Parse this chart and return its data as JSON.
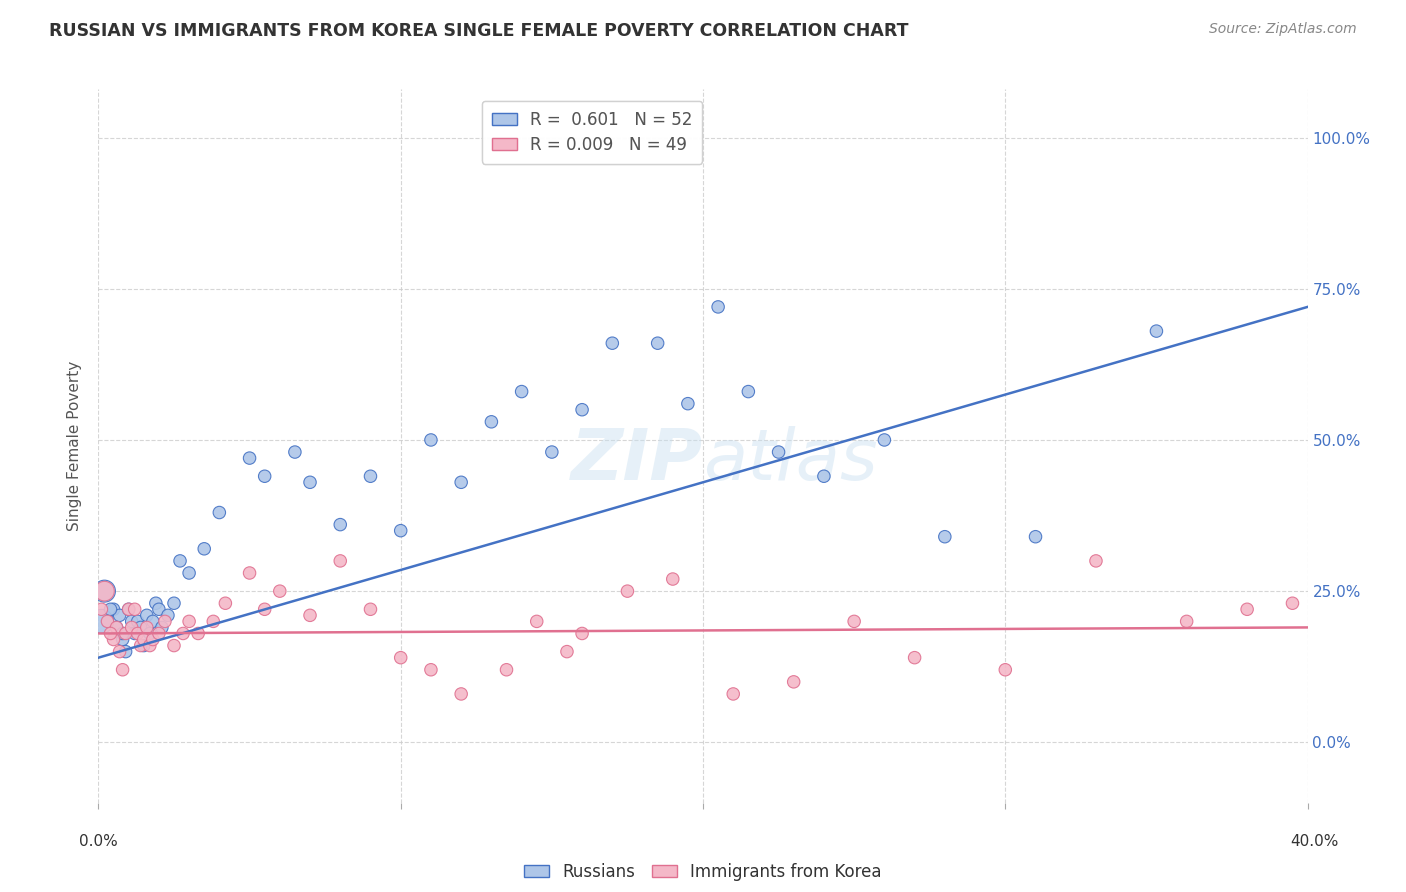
{
  "title": "RUSSIAN VS IMMIGRANTS FROM KOREA SINGLE FEMALE POVERTY CORRELATION CHART",
  "source": "Source: ZipAtlas.com",
  "ylabel": "Single Female Poverty",
  "ytick_vals": [
    0,
    25,
    50,
    75,
    100
  ],
  "watermark": "ZIPatlas",
  "russian_color": "#aec6e8",
  "russian_line_color": "#4472c4",
  "korea_color": "#f4b8c8",
  "korea_line_color": "#e07090",
  "background_color": "#ffffff",
  "russians_x": [
    0.3,
    0.5,
    0.6,
    0.7,
    0.8,
    0.9,
    1.0,
    1.1,
    1.2,
    1.3,
    1.4,
    1.5,
    1.6,
    1.7,
    1.8,
    1.9,
    2.0,
    2.1,
    2.3,
    2.5,
    2.7,
    3.0,
    3.5,
    4.0,
    5.0,
    5.5,
    6.5,
    7.0,
    8.0,
    9.0,
    10.0,
    11.0,
    12.0,
    13.0,
    14.0,
    15.0,
    16.0,
    17.0,
    18.5,
    19.5,
    20.5,
    21.5,
    22.5,
    24.0,
    26.0,
    28.0,
    31.0,
    35.0,
    0.1,
    0.2,
    0.4,
    0.8
  ],
  "russians_y": [
    20,
    22,
    19,
    21,
    17,
    15,
    22,
    20,
    18,
    20,
    19,
    16,
    21,
    18,
    20,
    23,
    22,
    19,
    21,
    23,
    30,
    28,
    32,
    38,
    47,
    44,
    48,
    43,
    36,
    44,
    35,
    50,
    43,
    53,
    58,
    48,
    55,
    66,
    66,
    56,
    72,
    58,
    48,
    44,
    50,
    34,
    34,
    68,
    20,
    25,
    22,
    18
  ],
  "russians_size": [
    80,
    80,
    80,
    80,
    80,
    80,
    80,
    80,
    80,
    80,
    80,
    80,
    80,
    80,
    80,
    80,
    80,
    80,
    80,
    80,
    80,
    80,
    80,
    80,
    80,
    80,
    80,
    80,
    80,
    80,
    80,
    80,
    80,
    80,
    80,
    80,
    80,
    80,
    80,
    80,
    80,
    80,
    80,
    80,
    80,
    80,
    80,
    80,
    300,
    250,
    80,
    80
  ],
  "korea_x": [
    0.1,
    0.3,
    0.5,
    0.6,
    0.7,
    0.8,
    0.9,
    1.0,
    1.1,
    1.2,
    1.3,
    1.4,
    1.5,
    1.6,
    1.7,
    1.8,
    2.0,
    2.2,
    2.5,
    2.8,
    3.0,
    3.3,
    3.8,
    4.2,
    5.0,
    5.5,
    6.0,
    7.0,
    8.0,
    9.0,
    10.0,
    11.0,
    12.0,
    13.5,
    14.5,
    15.5,
    16.0,
    17.5,
    19.0,
    21.0,
    23.0,
    25.0,
    27.0,
    30.0,
    33.0,
    36.0,
    38.0,
    39.5,
    0.2,
    0.4
  ],
  "korea_y": [
    22,
    20,
    17,
    19,
    15,
    12,
    18,
    22,
    19,
    22,
    18,
    16,
    17,
    19,
    16,
    17,
    18,
    20,
    16,
    18,
    20,
    18,
    20,
    23,
    28,
    22,
    25,
    21,
    30,
    22,
    14,
    12,
    8,
    12,
    20,
    15,
    18,
    25,
    27,
    8,
    10,
    20,
    14,
    12,
    30,
    20,
    22,
    23,
    25,
    18
  ],
  "korea_size": [
    80,
    80,
    80,
    80,
    80,
    80,
    80,
    80,
    80,
    80,
    80,
    80,
    80,
    80,
    80,
    80,
    80,
    80,
    80,
    80,
    80,
    80,
    80,
    80,
    80,
    80,
    80,
    80,
    80,
    80,
    80,
    80,
    80,
    80,
    80,
    80,
    80,
    80,
    80,
    80,
    80,
    80,
    80,
    80,
    80,
    80,
    80,
    80,
    200,
    80
  ],
  "russia_line_x": [
    0,
    40
  ],
  "russia_line_y": [
    14,
    72
  ],
  "korea_line_x": [
    0,
    40
  ],
  "korea_line_y": [
    18,
    19
  ],
  "xlim": [
    0,
    40
  ],
  "ylim": [
    -10,
    108
  ],
  "plot_ylim_bottom": 0,
  "plot_ylim_top": 100
}
